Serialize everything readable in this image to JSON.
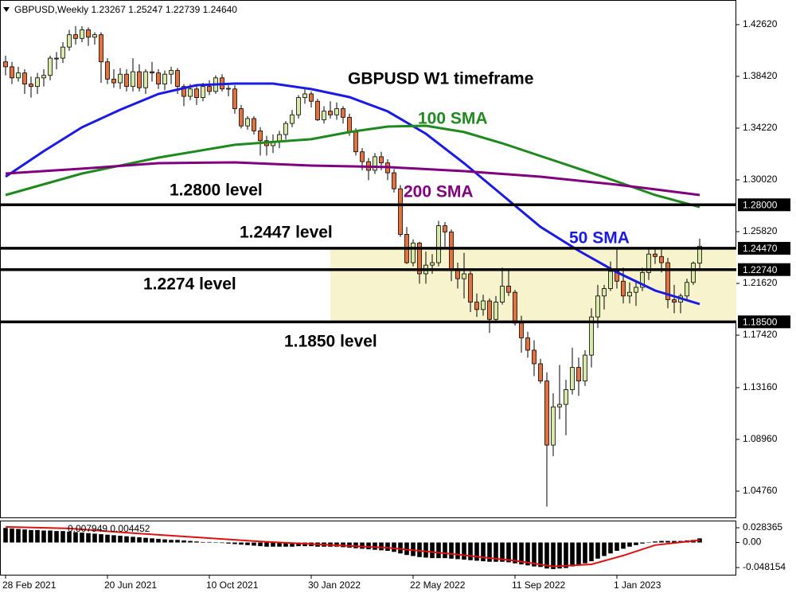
{
  "chart_data": [
    {
      "type": "candlestick",
      "header": "GBPUSD,Weekly  1.23267 1.25247 1.22739 1.24640",
      "title": "GBPUSD W1 timeframe",
      "xlim": [
        -0.875,
        114.75
      ],
      "ylim": [
        1.0263,
        1.4462
      ],
      "yticks": [
        {
          "value": 1.4262,
          "label": "1.42620"
        },
        {
          "value": 1.3842,
          "label": "1.38420"
        },
        {
          "value": 1.3422,
          "label": "1.34220"
        },
        {
          "value": 1.3002,
          "label": "1.30020"
        },
        {
          "value": 1.2582,
          "label": "1.25820"
        },
        {
          "value": 1.2162,
          "label": "1.21620"
        },
        {
          "value": 1.1742,
          "label": "1.17420"
        },
        {
          "value": 1.1316,
          "label": "1.13160"
        },
        {
          "value": 1.0896,
          "label": "1.08960"
        },
        {
          "value": 1.0476,
          "label": "1.04760"
        }
      ],
      "xticks": [
        {
          "value": 0,
          "label": "28 Feb 2021"
        },
        {
          "value": 16,
          "label": "20 Jun 2021"
        },
        {
          "value": 32,
          "label": "10 Oct 2021"
        },
        {
          "value": 48,
          "label": "30 Jan 2022"
        },
        {
          "value": 64,
          "label": "22 May 2022"
        },
        {
          "value": 80,
          "label": "11 Sep 2022"
        },
        {
          "value": 96,
          "label": "1 Jan 2023"
        }
      ],
      "up_color": "#d8eaa6",
      "down_color": "#e8703a",
      "zone": {
        "from": 51,
        "ymin": 1.185,
        "ymax": 1.2447,
        "color": "#f7f3cc"
      },
      "levels": [
        {
          "value": 1.28,
          "label": "1.28000",
          "annotation": "1.2800 level"
        },
        {
          "value": 1.2447,
          "label": "1.24470",
          "annotation": "1.2447 level"
        },
        {
          "value": 1.2274,
          "label": "1.22740",
          "annotation": "1.2274 level"
        },
        {
          "value": 1.185,
          "label": "1.18500",
          "annotation": "1.1850 level"
        }
      ],
      "series": [
        {
          "name": "50 SMA",
          "color": "#1a1ae6",
          "x": [
            0,
            6,
            12,
            18,
            24,
            30,
            36,
            42,
            48,
            54,
            60,
            66,
            72,
            78,
            84,
            90,
            96,
            102,
            109
          ],
          "values": [
            1.3028,
            1.3235,
            1.3429,
            1.3571,
            1.37,
            1.3771,
            1.3784,
            1.3784,
            1.3739,
            1.3674,
            1.3558,
            1.3377,
            1.3138,
            1.2879,
            1.2621,
            1.2427,
            1.2253,
            1.2104,
            1.1994
          ]
        },
        {
          "name": "100 SMA",
          "color": "#1e8a1e",
          "x": [
            0,
            12,
            24,
            36,
            48,
            54,
            60,
            66,
            72,
            78,
            84,
            90,
            96,
            102,
            109
          ],
          "values": [
            1.2879,
            1.3054,
            1.3183,
            1.3287,
            1.3332,
            1.339,
            1.3435,
            1.3441,
            1.339,
            1.3299,
            1.3196,
            1.3093,
            1.2989,
            1.2879,
            1.2782
          ]
        },
        {
          "name": "200 SMA",
          "color": "#800080",
          "x": [
            0,
            12,
            24,
            36,
            48,
            60,
            72,
            84,
            96,
            102,
            109
          ],
          "values": [
            1.3054,
            1.3093,
            1.3138,
            1.3144,
            1.3118,
            1.3106,
            1.3073,
            1.3028,
            1.2963,
            1.2925,
            1.2879
          ]
        }
      ],
      "candles": [
        [
          1.396,
          1.401,
          1.385,
          1.392
        ],
        [
          1.392,
          1.396,
          1.378,
          1.383
        ],
        [
          1.383,
          1.392,
          1.38,
          1.387
        ],
        [
          1.387,
          1.39,
          1.37,
          1.378
        ],
        [
          1.378,
          1.384,
          1.367,
          1.376
        ],
        [
          1.376,
          1.387,
          1.37,
          1.383
        ],
        [
          1.383,
          1.39,
          1.376,
          1.385
        ],
        [
          1.385,
          1.401,
          1.381,
          1.399
        ],
        [
          1.399,
          1.404,
          1.39,
          1.399
        ],
        [
          1.399,
          1.412,
          1.395,
          1.408
        ],
        [
          1.408,
          1.422,
          1.405,
          1.418
        ],
        [
          1.418,
          1.425,
          1.41,
          1.415
        ],
        [
          1.415,
          1.425,
          1.412,
          1.422
        ],
        [
          1.422,
          1.424,
          1.409,
          1.416
        ],
        [
          1.416,
          1.42,
          1.41,
          1.418
        ],
        [
          1.418,
          1.42,
          1.379,
          1.396
        ],
        [
          1.396,
          1.399,
          1.378,
          1.382
        ],
        [
          1.382,
          1.39,
          1.375,
          1.379
        ],
        [
          1.379,
          1.391,
          1.374,
          1.386
        ],
        [
          1.386,
          1.39,
          1.372,
          1.376
        ],
        [
          1.376,
          1.399,
          1.372,
          1.388
        ],
        [
          1.388,
          1.394,
          1.372,
          1.375
        ],
        [
          1.375,
          1.39,
          1.37,
          1.388
        ],
        [
          1.388,
          1.396,
          1.38,
          1.387
        ],
        [
          1.387,
          1.39,
          1.374,
          1.378
        ],
        [
          1.378,
          1.389,
          1.373,
          1.386
        ],
        [
          1.386,
          1.392,
          1.378,
          1.389
        ],
        [
          1.389,
          1.391,
          1.37,
          1.376
        ],
        [
          1.376,
          1.378,
          1.36,
          1.368
        ],
        [
          1.368,
          1.378,
          1.365,
          1.374
        ],
        [
          1.374,
          1.378,
          1.361,
          1.367
        ],
        [
          1.367,
          1.379,
          1.364,
          1.376
        ],
        [
          1.376,
          1.381,
          1.369,
          1.372
        ],
        [
          1.372,
          1.385,
          1.37,
          1.383
        ],
        [
          1.383,
          1.386,
          1.372,
          1.374
        ],
        [
          1.374,
          1.377,
          1.368,
          1.3745
        ],
        [
          1.374,
          1.377,
          1.354,
          1.358
        ],
        [
          1.358,
          1.361,
          1.342,
          1.344
        ],
        [
          1.344,
          1.352,
          1.341,
          1.35
        ],
        [
          1.35,
          1.352,
          1.337,
          1.34
        ],
        [
          1.34,
          1.343,
          1.32,
          1.332
        ],
        [
          1.332,
          1.336,
          1.32,
          1.328
        ],
        [
          1.328,
          1.337,
          1.322,
          1.331
        ],
        [
          1.331,
          1.34,
          1.326,
          1.337
        ],
        [
          1.337,
          1.348,
          1.333,
          1.346
        ],
        [
          1.346,
          1.357,
          1.343,
          1.353
        ],
        [
          1.353,
          1.369,
          1.35,
          1.367
        ],
        [
          1.367,
          1.375,
          1.362,
          1.37
        ],
        [
          1.37,
          1.372,
          1.359,
          1.364
        ],
        [
          1.364,
          1.366,
          1.348,
          1.349
        ],
        [
          1.349,
          1.36,
          1.346,
          1.356
        ],
        [
          1.356,
          1.364,
          1.35,
          1.353
        ],
        [
          1.353,
          1.363,
          1.349,
          1.358
        ],
        [
          1.358,
          1.36,
          1.346,
          1.351
        ],
        [
          1.351,
          1.354,
          1.336,
          1.339
        ],
        [
          1.339,
          1.342,
          1.32,
          1.323
        ],
        [
          1.323,
          1.326,
          1.308,
          1.315
        ],
        [
          1.315,
          1.318,
          1.3,
          1.308
        ],
        [
          1.308,
          1.322,
          1.305,
          1.319
        ],
        [
          1.319,
          1.323,
          1.308,
          1.314
        ],
        [
          1.314,
          1.317,
          1.3,
          1.306
        ],
        [
          1.306,
          1.309,
          1.29,
          1.293
        ],
        [
          1.293,
          1.296,
          1.254,
          1.256
        ],
        [
          1.256,
          1.262,
          1.232,
          1.233
        ],
        [
          1.233,
          1.252,
          1.23,
          1.249
        ],
        [
          1.249,
          1.25,
          1.216,
          1.224
        ],
        [
          1.224,
          1.242,
          1.216,
          1.231
        ],
        [
          1.231,
          1.24,
          1.224,
          1.233
        ],
        [
          1.233,
          1.267,
          1.23,
          1.263
        ],
        [
          1.263,
          1.266,
          1.246,
          1.258
        ],
        [
          1.258,
          1.26,
          1.218,
          1.227
        ],
        [
          1.227,
          1.233,
          1.212,
          1.22
        ],
        [
          1.22,
          1.241,
          1.204,
          1.224
        ],
        [
          1.224,
          1.226,
          1.193,
          1.201
        ],
        [
          1.201,
          1.208,
          1.189,
          1.195
        ],
        [
          1.195,
          1.207,
          1.19,
          1.202
        ],
        [
          1.202,
          1.204,
          1.176,
          1.187
        ],
        [
          1.187,
          1.206,
          1.185,
          1.201
        ],
        [
          1.201,
          1.229,
          1.199,
          1.214
        ],
        [
          1.214,
          1.228,
          1.206,
          1.209
        ],
        [
          1.209,
          1.211,
          1.182,
          1.184
        ],
        [
          1.184,
          1.19,
          1.16,
          1.172
        ],
        [
          1.172,
          1.177,
          1.156,
          1.162
        ],
        [
          1.162,
          1.17,
          1.141,
          1.151
        ],
        [
          1.151,
          1.155,
          1.135,
          1.137
        ],
        [
          1.137,
          1.144,
          1.035,
          1.085
        ],
        [
          1.085,
          1.127,
          1.076,
          1.116
        ],
        [
          1.116,
          1.15,
          1.106,
          1.118
        ],
        [
          1.118,
          1.138,
          1.093,
          1.13
        ],
        [
          1.13,
          1.164,
          1.126,
          1.148
        ],
        [
          1.148,
          1.156,
          1.125,
          1.137
        ],
        [
          1.137,
          1.162,
          1.133,
          1.158
        ],
        [
          1.158,
          1.196,
          1.148,
          1.189
        ],
        [
          1.189,
          1.215,
          1.18,
          1.206
        ],
        [
          1.206,
          1.215,
          1.195,
          1.212
        ],
        [
          1.212,
          1.234,
          1.21,
          1.226
        ],
        [
          1.226,
          1.244,
          1.212,
          1.218
        ],
        [
          1.218,
          1.229,
          1.2,
          1.206
        ],
        [
          1.206,
          1.217,
          1.2,
          1.209
        ],
        [
          1.209,
          1.219,
          1.198,
          1.213
        ],
        [
          1.213,
          1.229,
          1.21,
          1.225
        ],
        [
          1.225,
          1.245,
          1.219,
          1.24
        ],
        [
          1.24,
          1.245,
          1.232,
          1.238
        ],
        [
          1.238,
          1.245,
          1.225,
          1.233
        ],
        [
          1.233,
          1.237,
          1.196,
          1.203
        ],
        [
          1.203,
          1.215,
          1.192,
          1.201
        ],
        [
          1.201,
          1.208,
          1.192,
          1.206
        ],
        [
          1.206,
          1.22,
          1.202,
          1.217
        ],
        [
          1.217,
          1.234,
          1.215,
          1.23267
        ],
        [
          1.23267,
          1.25247,
          1.22739,
          1.2464
        ]
      ]
    },
    {
      "type": "macd",
      "label": "0.007949 0.004452",
      "ylim": [
        -0.0619,
        0.0406
      ],
      "yticks": [
        0.028365,
        {
          "value": 0,
          "label": "0.00"
        },
        -0.048154
      ],
      "hist_color": "#000000",
      "histogram": [
        0.028,
        0.027,
        0.026,
        0.025,
        0.024,
        0.024,
        0.023,
        0.023,
        0.022,
        0.022,
        0.021,
        0.02,
        0.019,
        0.018,
        0.017,
        0.016,
        0.015,
        0.014,
        0.013,
        0.012,
        0.011,
        0.01,
        0.009,
        0.008,
        0.007,
        0.006,
        0.005,
        0.005,
        0.004,
        0.003,
        0.002,
        0.001,
        0.001,
        0,
        -0.001,
        -0.002,
        -0.003,
        -0.004,
        -0.005,
        -0.006,
        -0.007,
        -0.008,
        -0.008,
        -0.008,
        -0.008,
        -0.008,
        -0.007,
        -0.007,
        -0.007,
        -0.008,
        -0.008,
        -0.008,
        -0.008,
        -0.009,
        -0.01,
        -0.011,
        -0.012,
        -0.013,
        -0.014,
        -0.015,
        -0.016,
        -0.018,
        -0.021,
        -0.024,
        -0.026,
        -0.028,
        -0.029,
        -0.03,
        -0.03,
        -0.03,
        -0.031,
        -0.032,
        -0.033,
        -0.034,
        -0.035,
        -0.036,
        -0.037,
        -0.037,
        -0.037,
        -0.038,
        -0.04,
        -0.042,
        -0.044,
        -0.046,
        -0.047,
        -0.05,
        -0.051,
        -0.05,
        -0.049,
        -0.046,
        -0.043,
        -0.04,
        -0.036,
        -0.031,
        -0.026,
        -0.021,
        -0.016,
        -0.012,
        -0.008,
        -0.005,
        -0.002,
        0,
        0.002,
        0.003,
        0.003,
        0.003,
        0.003,
        0.004,
        0.005,
        0.007949
      ],
      "signal": {
        "color": "#e01010",
        "x": [
          0,
          10,
          20,
          30,
          40,
          50,
          60,
          70,
          80,
          86,
          92,
          97,
          102,
          109
        ],
        "values": [
          0.03,
          0.027,
          0.018,
          0.01,
          0.002,
          -0.004,
          -0.01,
          -0.022,
          -0.035,
          -0.046,
          -0.042,
          -0.025,
          -0.005,
          0.004452
        ]
      }
    }
  ]
}
